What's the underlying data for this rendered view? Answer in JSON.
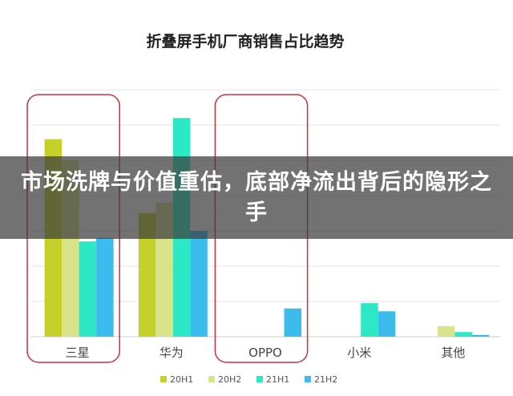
{
  "chart_data": {
    "type": "bar",
    "title": "折叠屏手机厂商销售占比趋势",
    "categories": [
      "三星",
      "华为",
      "OPPO",
      "小米",
      "其他"
    ],
    "series": [
      {
        "name": "20H1",
        "color": "#c5d12a",
        "values": [
          56,
          35,
          0,
          0,
          0
        ]
      },
      {
        "name": "20H2",
        "color": "#d8e38a",
        "values": [
          50,
          38,
          0,
          0,
          3
        ]
      },
      {
        "name": "21H1",
        "color": "#2ce8c5",
        "values": [
          27,
          62,
          0,
          9.5,
          1.3
        ]
      },
      {
        "name": "21H2",
        "color": "#3bbcec",
        "values": [
          28,
          30,
          8,
          7.2,
          0.5
        ]
      }
    ],
    "ylim": [
      0,
      70
    ],
    "grid": true,
    "legend": "bottom",
    "highlight_categories": [
      "三星",
      "OPPO"
    ],
    "highlight_color": "#c9323c"
  },
  "banner": {
    "text": "市场洗牌与价值重估，底部净流出背后的隐形之手"
  }
}
